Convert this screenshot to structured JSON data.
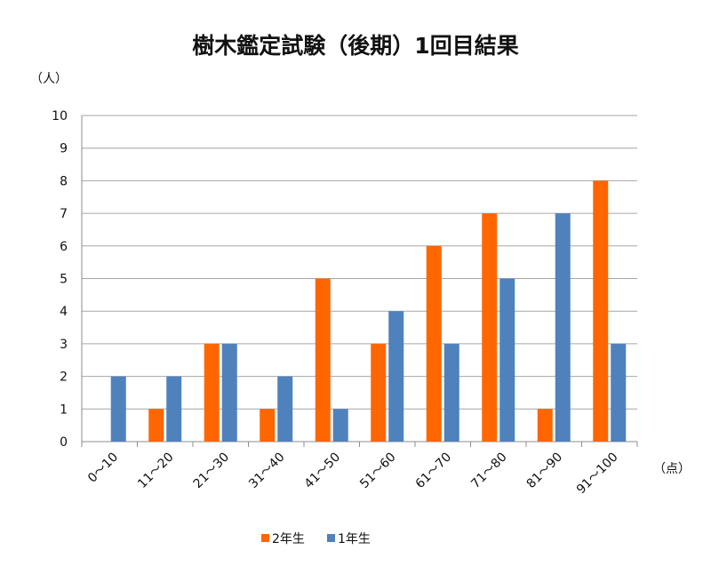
{
  "chart_data": {
    "type": "bar",
    "title": "樹木鑑定試験（後期）1回目結果",
    "ylabel": "（人）",
    "xlabel": "（点）",
    "ylim": [
      0,
      10
    ],
    "yticks": [
      0,
      1,
      2,
      3,
      4,
      5,
      6,
      7,
      8,
      9,
      10
    ],
    "grid": true,
    "legend_position": "bottom",
    "categories": [
      "0〜10",
      "11〜20",
      "21〜30",
      "31〜40",
      "41〜50",
      "51〜60",
      "61〜70",
      "71〜80",
      "81〜90",
      "91〜100"
    ],
    "series": [
      {
        "name": "2年生",
        "color": "#FF6600",
        "values": [
          0,
          1,
          3,
          1,
          5,
          3,
          6,
          7,
          1,
          8
        ]
      },
      {
        "name": "1年生",
        "color": "#4F81BD",
        "values": [
          2,
          2,
          3,
          2,
          1,
          4,
          3,
          5,
          7,
          3
        ]
      }
    ]
  }
}
